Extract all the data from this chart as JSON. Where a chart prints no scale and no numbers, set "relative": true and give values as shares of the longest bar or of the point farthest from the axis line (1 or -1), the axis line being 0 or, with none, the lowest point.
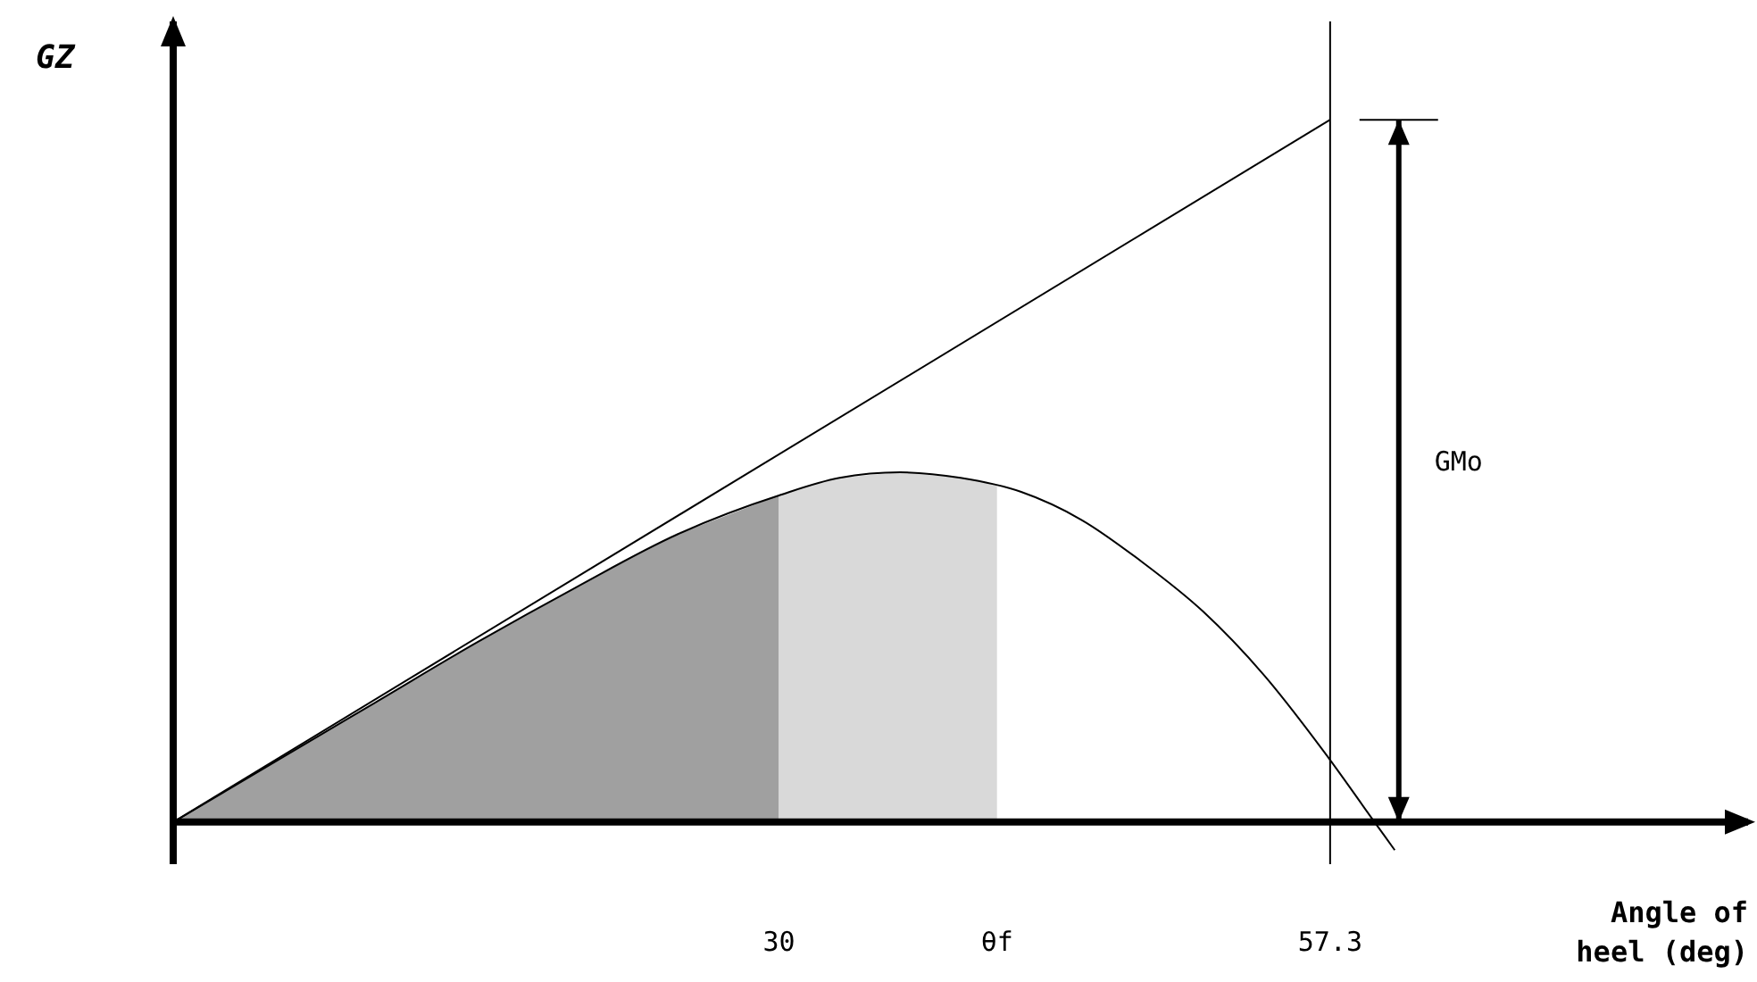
{
  "chart_data": {
    "type": "line",
    "relative": true,
    "xlabel": "Angle of heel (deg)",
    "ylabel": "GZ",
    "xlim": [
      0,
      78
    ],
    "xticks": [
      30,
      {
        "value": 40.8,
        "label": "θf"
      },
      57.3
    ],
    "series": [
      {
        "type": "area",
        "color": "#a0a0a0",
        "x": [
          0,
          5,
          10,
          15,
          20,
          25,
          30
        ],
        "values": [
          0,
          0.085,
          0.17,
          0.255,
          0.335,
          0.41,
          0.465
        ]
      },
      {
        "type": "area",
        "color": "#d9d9d9",
        "x": [
          30,
          33,
          36,
          39,
          40.8
        ],
        "values": [
          0.465,
          0.49,
          0.498,
          0.49,
          0.48
        ]
      },
      {
        "color": "#000000",
        "x": [
          0,
          5,
          10,
          15,
          20,
          25,
          30,
          33,
          36,
          39,
          42,
          45,
          48,
          51,
          54,
          57,
          59.5,
          60.5
        ],
        "values": [
          0,
          0.085,
          0.17,
          0.255,
          0.335,
          0.41,
          0.465,
          0.49,
          0.498,
          0.49,
          0.47,
          0.43,
          0.37,
          0.3,
          0.21,
          0.1,
          0,
          -0.04
        ]
      },
      {
        "color": "#000000",
        "x": [
          0,
          57.3
        ],
        "values": [
          0,
          1
        ]
      },
      {
        "color": "#000000",
        "x": [
          60.7,
          60.7,
          60.7
        ],
        "values": [
          0,
          0.5,
          1
        ]
      }
    ],
    "ref_lines": [
      {
        "axis": "x",
        "value": 57.3,
        "color": "#000000"
      }
    ],
    "annotations": [
      {
        "text": "GMo",
        "x": 60.7,
        "y": 0.5
      }
    ],
    "marker": "none",
    "line_style": "solid"
  }
}
